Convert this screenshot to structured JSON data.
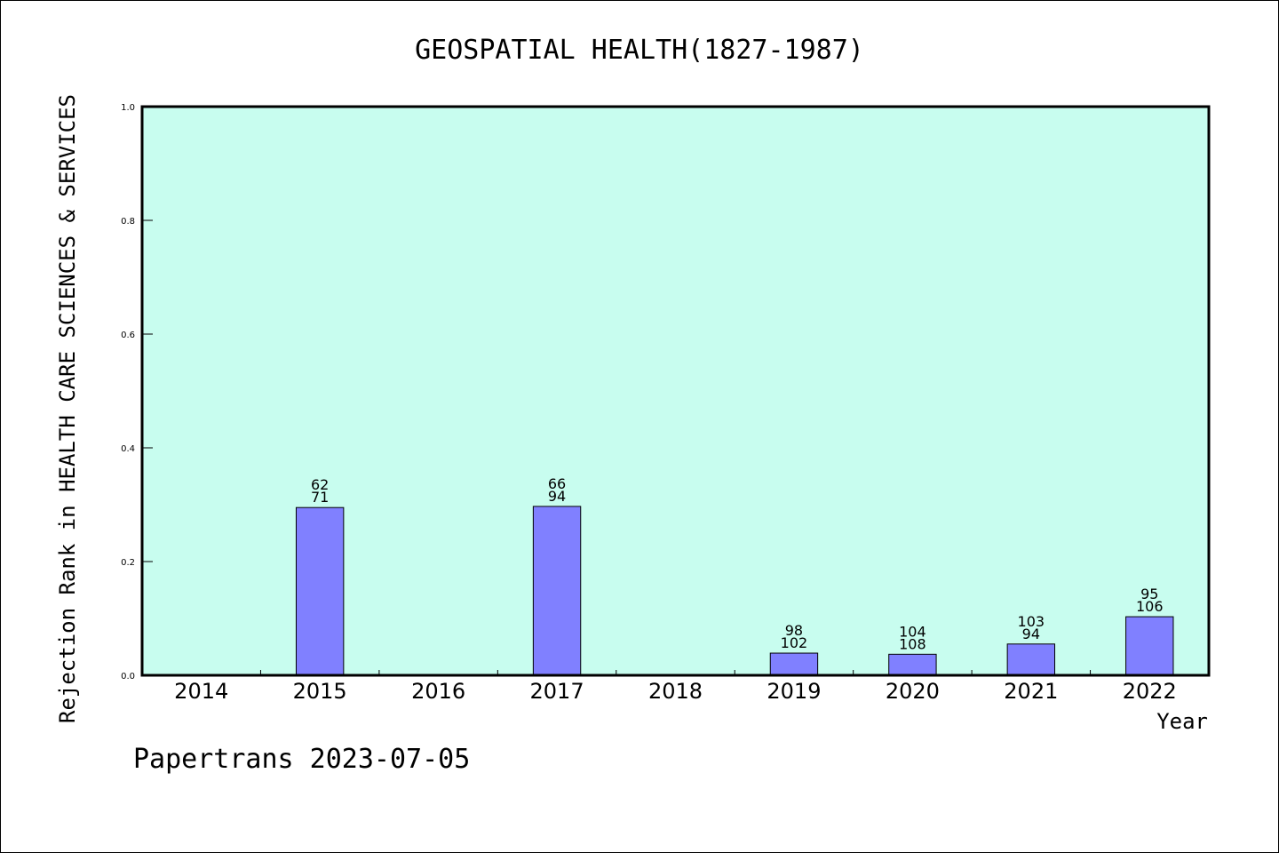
{
  "chart_data": {
    "type": "bar",
    "title": "GEOSPATIAL HEALTH(1827-1987)",
    "xlabel": "Year",
    "ylabel": "Rejection Rank in HEALTH CARE SCIENCES & SERVICES",
    "ylim": [
      0,
      1.0
    ],
    "yticks": [
      "0.0",
      "0.2",
      "0.4",
      "0.6",
      "0.8",
      "1.0"
    ],
    "categories": [
      "2014",
      "2015",
      "2016",
      "2017",
      "2018",
      "2019",
      "2020",
      "2021",
      "2022"
    ],
    "values": [
      0,
      0.295,
      0,
      0.297,
      0,
      0.039,
      0.037,
      0.055,
      0.103
    ],
    "labels": [
      null,
      [
        "62",
        "71"
      ],
      null,
      [
        "66",
        "94"
      ],
      null,
      [
        "98",
        "102"
      ],
      [
        "104",
        "108"
      ],
      [
        "103",
        "94"
      ],
      [
        "95",
        "106"
      ]
    ],
    "grid": false,
    "colors": {
      "plot_background": "#c8fdef",
      "bar_fill": "#8080ff",
      "bar_stroke": "#000000"
    }
  },
  "footer": {
    "text": "Papertrans 2023-07-05"
  }
}
